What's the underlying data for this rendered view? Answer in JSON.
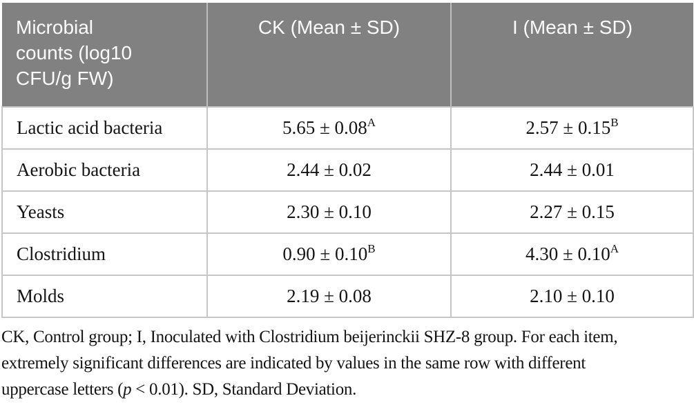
{
  "table": {
    "columns": [
      {
        "label": "Microbial\ncounts (log10\nCFU/g FW)"
      },
      {
        "label": "CK (Mean ± SD)"
      },
      {
        "label": "I (Mean ± SD)"
      }
    ],
    "rows": [
      {
        "label": "Lactic acid bacteria",
        "ck": "5.65 ± 0.08",
        "ck_sup": "A",
        "i": "2.57 ± 0.15",
        "i_sup": "B"
      },
      {
        "label": "Aerobic bacteria",
        "ck": "2.44 ± 0.02",
        "ck_sup": "",
        "i": "2.44 ± 0.01",
        "i_sup": ""
      },
      {
        "label": "Yeasts",
        "ck": "2.30 ± 0.10",
        "ck_sup": "",
        "i": "2.27 ± 0.15",
        "i_sup": ""
      },
      {
        "label": "Clostridium",
        "ck": "0.90 ± 0.10",
        "ck_sup": "B",
        "i": "4.30 ± 0.10",
        "i_sup": "A"
      },
      {
        "label": "Molds",
        "ck": "2.19 ± 0.08",
        "ck_sup": "",
        "i": "2.10 ± 0.10",
        "i_sup": ""
      }
    ]
  },
  "footnote": {
    "line1": "CK, Control group; I, Inoculated with Clostridium beijerinckii SHZ-8 group. For each item,",
    "line2": "extremely significant differences are indicated by values in the same row with different",
    "line3_pre": "uppercase letters (",
    "line3_italic": "p",
    "line3_post": " < 0.01). SD, Standard Deviation."
  },
  "colors": {
    "header_bg": "#818181",
    "header_text": "#fbfbfb",
    "header_divider": "#bdbdbd",
    "body_border": "#c6c6c6",
    "body_text": "#141414"
  }
}
